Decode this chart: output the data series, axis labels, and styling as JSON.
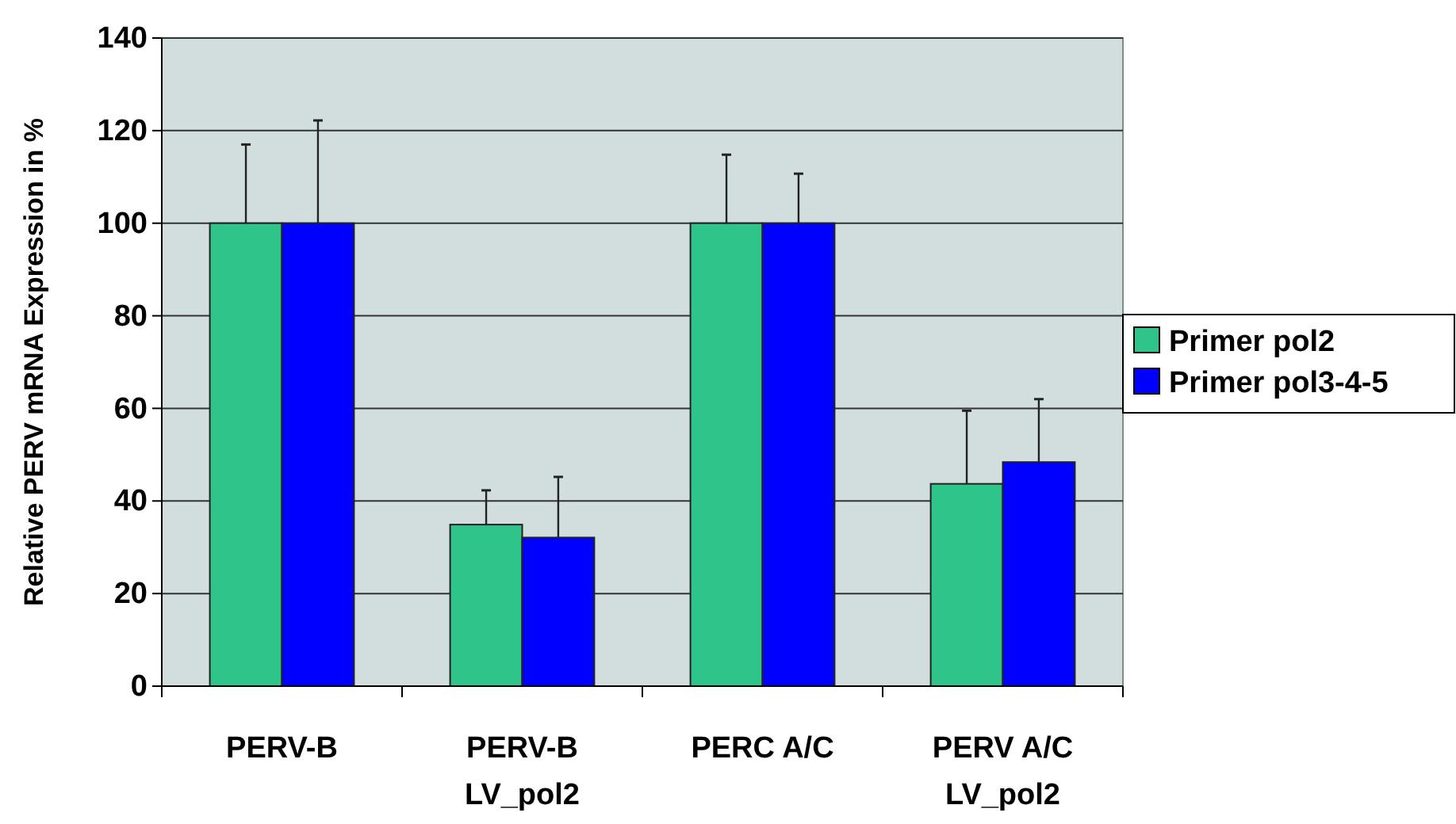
{
  "chart_data": {
    "type": "bar",
    "ylabel": "Relative PERV mRNA Expression  in %",
    "categories": [
      "PERV-B",
      "PERV-B LV_pol2",
      "PERC A/C",
      "PERV A/C LV_pol2"
    ],
    "series": [
      {
        "name": "Primer pol2",
        "color": "#2ec48a",
        "values": [
          100,
          34.9,
          100,
          43.7
        ],
        "errors": [
          [
            100,
            117
          ],
          [
            34.9,
            42.3
          ],
          [
            100,
            114.8
          ],
          [
            43.7,
            59.5
          ]
        ]
      },
      {
        "name": "Primer pol3-4-5",
        "color": "#0000ff",
        "values": [
          100,
          32.1,
          100,
          48.4
        ],
        "errors": [
          [
            100,
            122.2
          ],
          [
            32.1,
            45.2
          ],
          [
            100,
            110.7
          ],
          [
            48.4,
            62
          ]
        ]
      }
    ],
    "ylim": [
      0,
      140
    ],
    "yticks": [
      0,
      20,
      40,
      60,
      80,
      100,
      120,
      140
    ],
    "grid": "y",
    "legend": "right"
  }
}
